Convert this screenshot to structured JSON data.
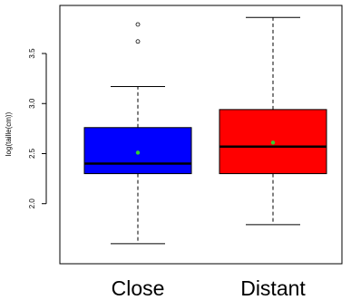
{
  "chart_data": {
    "type": "boxplot",
    "title": "",
    "xlabel": "",
    "ylabel": "log(taille(cm))",
    "ylim": [
      1.4,
      3.98
    ],
    "yticks": [
      2.0,
      2.5,
      3.0,
      3.5
    ],
    "ytick_labels": [
      "2.0",
      "2.5",
      "3.0",
      "3.5"
    ],
    "grid": false,
    "legend": "none",
    "categories": [
      "Close",
      "Distant"
    ],
    "boxes": [
      {
        "category": "Close",
        "color": "#0000ff",
        "whisker_low": 1.6,
        "q1": 2.3,
        "median": 2.4,
        "q3": 2.76,
        "whisker_high": 3.17,
        "mean": 2.51,
        "outliers": [
          3.62,
          3.79
        ]
      },
      {
        "category": "Distant",
        "color": "#ff0000",
        "whisker_low": 1.79,
        "q1": 2.3,
        "median": 2.57,
        "q3": 2.94,
        "whisker_high": 3.86,
        "mean": 2.61,
        "outliers": []
      }
    ],
    "mean_marker_color": "#33cc33"
  }
}
